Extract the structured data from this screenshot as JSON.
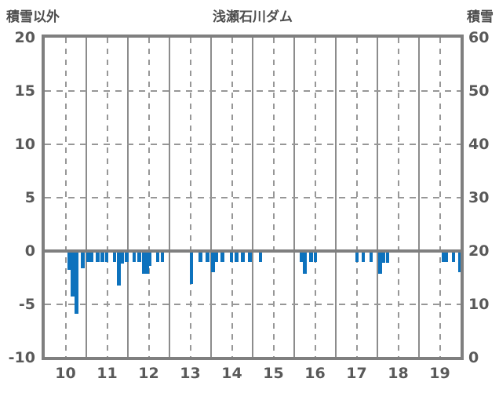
{
  "header": {
    "left_axis_title": "積雪以外",
    "chart_title": "浅瀬石川ダム",
    "right_axis_title": "積雪"
  },
  "chart_data": {
    "type": "bar",
    "title": "浅瀬石川ダム",
    "bar_color": "#0d72bd",
    "grid": "on",
    "left_axis": {
      "label": "積雪以外",
      "range": [
        -10,
        20
      ],
      "ticks": [
        20,
        15,
        10,
        5,
        0,
        -5,
        -10
      ]
    },
    "right_axis": {
      "label": "積雪",
      "range": [
        0,
        60
      ],
      "ticks": [
        60,
        50,
        40,
        30,
        20,
        10,
        0
      ]
    },
    "x_axis": {
      "range": [
        10,
        20
      ],
      "ticks": [
        10,
        11,
        12,
        13,
        14,
        15,
        16,
        17,
        18,
        19
      ]
    },
    "dashed_h_values": [
      15,
      10,
      5,
      -5
    ],
    "bar_width_days": 0.085,
    "series": [
      {
        "name": "積雪以外",
        "bars": [
          [
            10.55,
            -1.8
          ],
          [
            10.63,
            -4.3
          ],
          [
            10.72,
            -5.9
          ],
          [
            10.87,
            -1.6
          ],
          [
            11.0,
            -1.0
          ],
          [
            11.09,
            -1.0
          ],
          [
            11.23,
            -1.0
          ],
          [
            11.34,
            -1.0
          ],
          [
            11.45,
            -1.0
          ],
          [
            11.64,
            -1.0
          ],
          [
            11.74,
            -3.2
          ],
          [
            11.82,
            -1.2
          ],
          [
            11.93,
            -1.0
          ],
          [
            12.11,
            -1.0
          ],
          [
            12.23,
            -1.0
          ],
          [
            12.34,
            -2.1
          ],
          [
            12.42,
            -2.1
          ],
          [
            12.49,
            -1.4
          ],
          [
            12.67,
            -1.0
          ],
          [
            12.79,
            -1.0
          ],
          [
            13.49,
            -3.1
          ],
          [
            13.7,
            -1.0
          ],
          [
            13.87,
            -1.0
          ],
          [
            14.0,
            -2.0
          ],
          [
            14.08,
            -1.0
          ],
          [
            14.23,
            -1.0
          ],
          [
            14.45,
            -1.0
          ],
          [
            14.57,
            -1.0
          ],
          [
            14.72,
            -1.0
          ],
          [
            14.89,
            -1.0
          ],
          [
            15.15,
            -1.0
          ],
          [
            16.13,
            -1.0
          ],
          [
            16.21,
            -2.1
          ],
          [
            16.36,
            -1.0
          ],
          [
            16.47,
            -1.0
          ],
          [
            17.47,
            -1.0
          ],
          [
            17.62,
            -1.0
          ],
          [
            17.81,
            -1.0
          ],
          [
            18.02,
            -2.1
          ],
          [
            18.11,
            -1.1
          ],
          [
            18.2,
            -1.1
          ],
          [
            19.55,
            -1.0
          ],
          [
            19.62,
            -1.0
          ],
          [
            19.79,
            -1.0
          ],
          [
            19.94,
            -2.0
          ]
        ]
      }
    ]
  }
}
